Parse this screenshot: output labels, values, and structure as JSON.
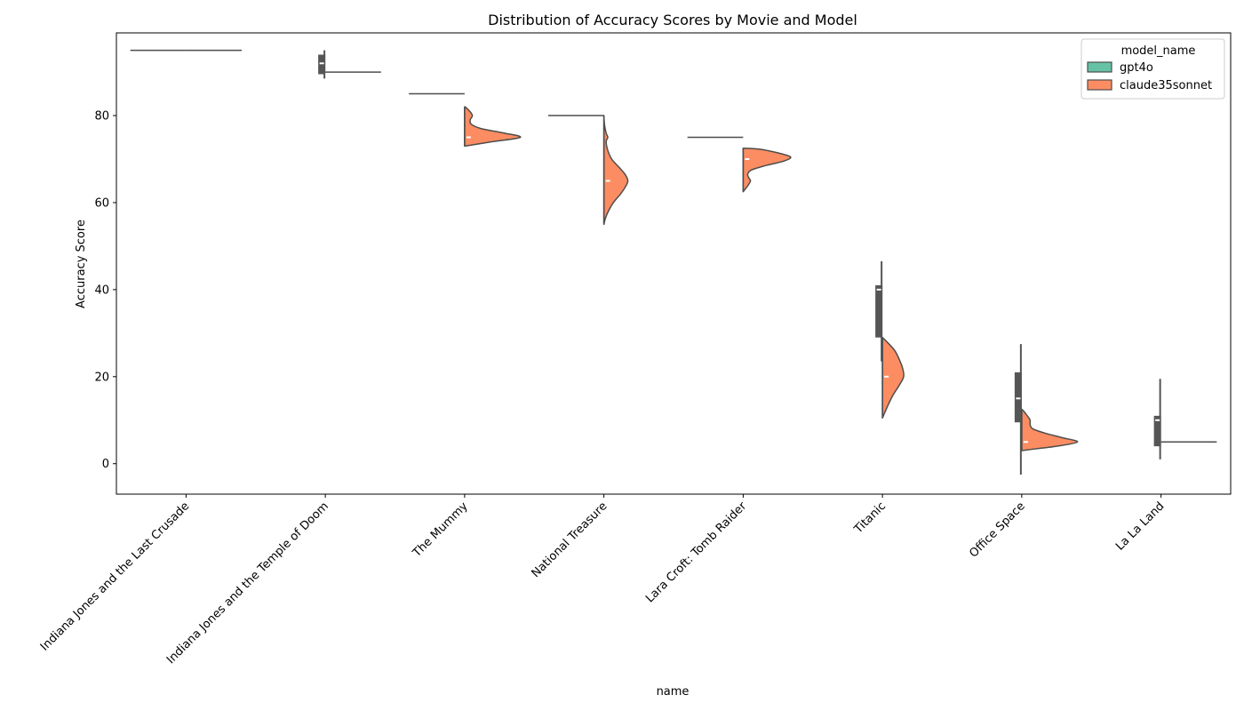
{
  "chart_data": {
    "type": "violin",
    "title": "Distribution of Accuracy Scores by Movie and Model",
    "xlabel": "name",
    "ylabel": "Accuracy Score",
    "ylim": [
      -7,
      99
    ],
    "yticks": [
      0,
      20,
      40,
      60,
      80
    ],
    "grid": false,
    "split": true,
    "categories": [
      "Indiana Jones and the Last Crusade",
      "Indiana Jones and the Temple of Doom",
      "The Mummy",
      "National Treasure",
      "Lara Croft: Tomb Raider",
      "Titanic",
      "Office Space",
      "La La Land"
    ],
    "legend": {
      "title": "model_name",
      "position": "top-right",
      "entries": [
        {
          "name": "gpt4o",
          "color": "#66c2a5"
        },
        {
          "name": "claude35sonnet",
          "color": "#fc8d62"
        }
      ]
    },
    "series": [
      {
        "name": "gpt4o",
        "color": "#66c2a5",
        "values": [
          {
            "kind": "constant",
            "value": 95
          },
          {
            "kind": "box",
            "min": 88.5,
            "q1": 89.5,
            "median": 92,
            "q3": 94,
            "max": 95
          },
          {
            "kind": "constant",
            "value": 85
          },
          {
            "kind": "constant",
            "value": 80
          },
          {
            "kind": "constant",
            "value": 75
          },
          {
            "kind": "box",
            "min": 23.5,
            "q1": 29,
            "median": 40,
            "q3": 41,
            "max": 46.5
          },
          {
            "kind": "box",
            "min": -2.5,
            "q1": 9.5,
            "median": 15,
            "q3": 21,
            "max": 27.5
          },
          {
            "kind": "box",
            "min": 1,
            "q1": 4,
            "median": 10,
            "q3": 11,
            "max": 19.5
          }
        ]
      },
      {
        "name": "claude35sonnet",
        "color": "#fc8d62",
        "values": [
          {
            "kind": "constant",
            "value": 95
          },
          {
            "kind": "constant",
            "value": 90
          },
          {
            "kind": "violin",
            "median": 75,
            "min": 73,
            "max": 82,
            "profile": [
              [
                73,
                0.02
              ],
              [
                74,
                0.5
              ],
              [
                75,
                1.0
              ],
              [
                76,
                0.7
              ],
              [
                77,
                0.3
              ],
              [
                78,
                0.12
              ],
              [
                79,
                0.1
              ],
              [
                80,
                0.14
              ],
              [
                81,
                0.09
              ],
              [
                82,
                0.01
              ]
            ]
          },
          {
            "kind": "violin",
            "median": 65,
            "min": 55,
            "max": 80,
            "profile": [
              [
                55,
                0.0
              ],
              [
                56.5,
                0.03
              ],
              [
                58,
                0.08
              ],
              [
                60,
                0.17
              ],
              [
                62,
                0.3
              ],
              [
                63.5,
                0.38
              ],
              [
                65,
                0.43
              ],
              [
                66.5,
                0.38
              ],
              [
                68,
                0.28
              ],
              [
                70,
                0.14
              ],
              [
                72,
                0.07
              ],
              [
                74,
                0.04
              ],
              [
                75,
                0.07
              ],
              [
                76,
                0.04
              ],
              [
                78,
                0.01
              ],
              [
                80,
                0.0
              ]
            ]
          },
          {
            "kind": "violin",
            "median": 70,
            "min": 62.5,
            "max": 72.5,
            "profile": [
              [
                62.5,
                0.0
              ],
              [
                63,
                0.03
              ],
              [
                64,
                0.09
              ],
              [
                65,
                0.13
              ],
              [
                65.5,
                0.11
              ],
              [
                66.5,
                0.08
              ],
              [
                67.5,
                0.15
              ],
              [
                68.5,
                0.4
              ],
              [
                69.5,
                0.72
              ],
              [
                70.5,
                0.85
              ],
              [
                71.5,
                0.6
              ],
              [
                72.3,
                0.28
              ],
              [
                72.5,
                0.0
              ]
            ]
          },
          {
            "kind": "violin",
            "median": 20,
            "min": 10.5,
            "max": 29,
            "profile": [
              [
                10.5,
                0.0
              ],
              [
                12,
                0.05
              ],
              [
                14,
                0.12
              ],
              [
                16,
                0.2
              ],
              [
                18,
                0.3
              ],
              [
                20,
                0.38
              ],
              [
                22,
                0.36
              ],
              [
                24,
                0.3
              ],
              [
                26,
                0.22
              ],
              [
                28,
                0.08
              ],
              [
                29,
                0.0
              ]
            ]
          },
          {
            "kind": "violin",
            "median": 5,
            "min": 3,
            "max": 12.5,
            "profile": [
              [
                3,
                0.0
              ],
              [
                3.5,
                0.3
              ],
              [
                4,
                0.62
              ],
              [
                5,
                1.0
              ],
              [
                6,
                0.72
              ],
              [
                7,
                0.42
              ],
              [
                8,
                0.2
              ],
              [
                9,
                0.15
              ],
              [
                10,
                0.15
              ],
              [
                11,
                0.1
              ],
              [
                12,
                0.04
              ],
              [
                12.5,
                0.0
              ]
            ]
          },
          {
            "kind": "constant",
            "value": 5
          }
        ]
      }
    ]
  }
}
